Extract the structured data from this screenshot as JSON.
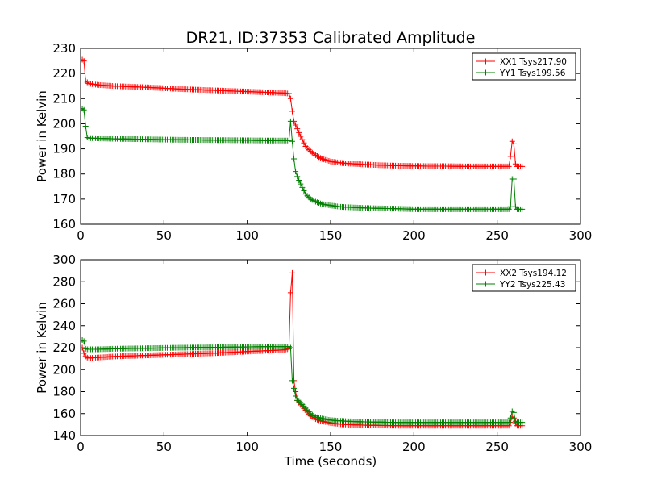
{
  "chart_data": [
    {
      "type": "line",
      "title": "DR21, ID:37353 Calibrated Amplitude",
      "xlabel": "",
      "ylabel": "Power in Kelvin",
      "xlim": [
        0,
        300
      ],
      "ylim": [
        160,
        230
      ],
      "xticks": [
        0,
        50,
        100,
        150,
        200,
        250,
        300
      ],
      "yticks": [
        160,
        170,
        180,
        190,
        200,
        210,
        220,
        230
      ],
      "grid": false,
      "legend": "top-right",
      "marker": "+",
      "series": [
        {
          "name": "XX1 Tsys217.90",
          "color": "#ff0000",
          "x": [
            0,
            1,
            2,
            3,
            5,
            10,
            20,
            40,
            60,
            80,
            100,
            115,
            122,
            125,
            126,
            127,
            128,
            130,
            132,
            135,
            138,
            141,
            145,
            150,
            155,
            160,
            170,
            180,
            190,
            200,
            210,
            220,
            230,
            240,
            250,
            257,
            258,
            259,
            260,
            261,
            262,
            265
          ],
          "y": [
            225,
            225.5,
            225,
            217,
            216,
            215.5,
            215,
            214.5,
            213.8,
            213.3,
            212.8,
            212.4,
            212.2,
            212,
            210,
            205,
            201,
            198,
            195,
            191,
            189,
            187.5,
            186,
            185,
            184.5,
            184.2,
            183.8,
            183.5,
            183.3,
            183.2,
            183.1,
            183.1,
            183,
            183,
            183,
            183,
            187,
            193,
            192,
            184,
            183,
            183
          ]
        },
        {
          "name": "YY1 Tsys199.56",
          "color": "#008000",
          "x": [
            0,
            1,
            2,
            3,
            4,
            5,
            10,
            20,
            40,
            60,
            80,
            100,
            115,
            122,
            125,
            126,
            127,
            128,
            129,
            130,
            132,
            135,
            138,
            141,
            145,
            150,
            155,
            160,
            170,
            180,
            190,
            200,
            210,
            220,
            230,
            240,
            250,
            257,
            258,
            259,
            260,
            261,
            262,
            265
          ],
          "y": [
            206,
            206,
            205.5,
            199,
            194.5,
            194.3,
            194.2,
            194,
            193.8,
            193.6,
            193.5,
            193.4,
            193.3,
            193.3,
            193.3,
            201,
            193,
            186,
            181,
            179,
            176,
            172,
            170,
            169,
            168,
            167.5,
            167,
            166.8,
            166.5,
            166.3,
            166.2,
            166,
            166,
            166,
            166,
            166,
            166,
            166,
            167,
            178,
            178,
            167,
            166,
            166
          ]
        }
      ]
    },
    {
      "type": "line",
      "title": "",
      "xlabel": "Time (seconds)",
      "ylabel": "Power in Kelvin",
      "xlim": [
        0,
        300
      ],
      "ylim": [
        140,
        300
      ],
      "xticks": [
        0,
        50,
        100,
        150,
        200,
        250,
        300
      ],
      "yticks": [
        140,
        160,
        180,
        200,
        220,
        240,
        260,
        280,
        300
      ],
      "grid": false,
      "legend": "top-right",
      "marker": "+",
      "series": [
        {
          "name": "XX2 Tsys194.12",
          "color": "#ff0000",
          "x": [
            0,
            1,
            2,
            3,
            4,
            5,
            10,
            20,
            40,
            60,
            80,
            100,
            115,
            122,
            125,
            126,
            127,
            128,
            129,
            130,
            132,
            135,
            138,
            141,
            145,
            150,
            155,
            160,
            170,
            180,
            190,
            200,
            210,
            220,
            230,
            240,
            250,
            257,
            258,
            259,
            260,
            261,
            262,
            265
          ],
          "y": [
            220,
            220,
            215,
            212,
            211,
            210.5,
            211,
            212,
            213,
            214,
            215,
            216.5,
            217.5,
            218,
            219,
            270,
            288,
            190,
            180,
            172,
            168,
            163,
            158,
            155,
            153,
            151.5,
            150.5,
            150,
            149.5,
            149.2,
            149,
            149,
            149,
            149,
            149,
            149,
            149,
            149,
            152,
            157,
            156,
            151,
            149,
            149
          ]
        },
        {
          "name": "YY2 Tsys225.43",
          "color": "#008000",
          "x": [
            0,
            1,
            2,
            3,
            4,
            5,
            10,
            20,
            40,
            60,
            80,
            100,
            115,
            122,
            125,
            126,
            127,
            128,
            129,
            130,
            132,
            135,
            138,
            141,
            145,
            150,
            155,
            160,
            170,
            180,
            190,
            200,
            210,
            220,
            230,
            240,
            250,
            257,
            258,
            259,
            260,
            261,
            262,
            265
          ],
          "y": [
            226,
            227,
            226,
            219,
            218.5,
            218.5,
            218.5,
            219,
            219.5,
            220,
            220.3,
            220.7,
            221,
            221,
            221,
            220,
            190,
            183,
            176,
            172,
            170,
            165,
            160,
            157,
            155.5,
            154,
            153.5,
            153,
            152.5,
            152.2,
            152,
            152,
            152,
            152,
            152,
            152,
            152,
            152,
            156,
            162,
            161,
            153,
            152,
            152
          ]
        }
      ]
    }
  ]
}
